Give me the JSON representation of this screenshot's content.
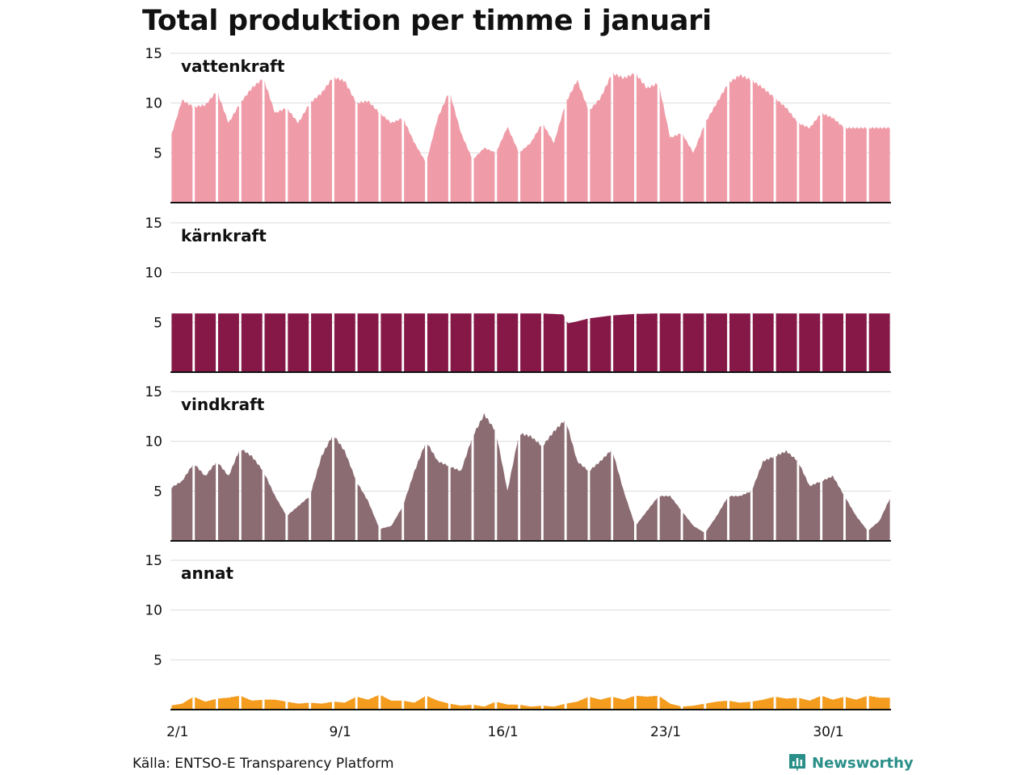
{
  "title": "Total produktion per timme i januari",
  "source": "Källa: ENTSO-E Transparency Platform",
  "brand": {
    "name": "Newsworthy",
    "icon": "bar-chart-icon",
    "color": "#2a8f88"
  },
  "chart_data": {
    "type": "area",
    "title": "Total produktion per timme i januari",
    "ylim": [
      0,
      15
    ],
    "yticks": [
      5,
      10,
      15
    ],
    "xlabel": "",
    "ylabel": "",
    "x_unit": "day of January (hourly resolution, days separated by white gaps)",
    "xlim": [
      1,
      32
    ],
    "xticks": [
      {
        "label": "2/1",
        "day": 2
      },
      {
        "label": "9/1",
        "day": 9
      },
      {
        "label": "16/1",
        "day": 16
      },
      {
        "label": "23/1",
        "day": 23
      },
      {
        "label": "30/1",
        "day": 30
      }
    ],
    "grid": true,
    "series": [
      {
        "name": "vattenkraft",
        "color": "#f09ba8",
        "x": [
          1,
          1.5,
          2,
          2.5,
          3,
          3.5,
          4,
          4.5,
          5,
          5.5,
          6,
          6.5,
          7,
          7.5,
          8,
          8.5,
          9,
          9.5,
          10,
          10.5,
          11,
          11.5,
          12,
          12.5,
          13,
          13.5,
          14,
          14.5,
          15,
          15.5,
          16,
          16.5,
          17,
          17.5,
          18,
          18.5,
          19,
          19.5,
          20,
          20.5,
          21,
          21.5,
          22,
          22.5,
          23,
          23.5,
          24,
          24.5,
          25,
          25.5,
          26,
          26.5,
          27,
          27.5,
          28,
          28.5,
          29,
          29.5,
          30,
          30.5,
          31,
          31.5,
          32
        ],
        "values": [
          6.5,
          10.3,
          9.6,
          9.8,
          11.2,
          8.0,
          10.0,
          11.5,
          12.5,
          9.0,
          9.5,
          8.0,
          10.0,
          11.0,
          12.6,
          12.2,
          10.0,
          10.2,
          9.0,
          8.0,
          8.5,
          6.0,
          4.0,
          8.5,
          11.2,
          7.0,
          4.3,
          5.5,
          5.0,
          7.6,
          5.0,
          6.0,
          8.0,
          6.0,
          10.0,
          12.3,
          9.2,
          10.5,
          13.0,
          12.5,
          13.0,
          11.5,
          12.0,
          6.5,
          7.0,
          5.0,
          8.0,
          10.0,
          12.0,
          12.8,
          12.3,
          11.5,
          10.5,
          9.5,
          8.0,
          7.5,
          9.0,
          8.5,
          7.5,
          7.5,
          7.5,
          7.5,
          7.5
        ]
      },
      {
        "name": "kärnkraft",
        "color": "#861848",
        "x": [
          1,
          2,
          3,
          4,
          5,
          6,
          7,
          8,
          9,
          10,
          11,
          12,
          13,
          14,
          15,
          16,
          17,
          17.9,
          18.1,
          18.5,
          19,
          20,
          21,
          22,
          23,
          24,
          25,
          26,
          27,
          28,
          29,
          30,
          31,
          32
        ],
        "values": [
          5.9,
          5.9,
          5.9,
          5.9,
          5.9,
          5.9,
          5.9,
          5.9,
          5.9,
          5.9,
          5.9,
          5.9,
          5.9,
          5.9,
          5.9,
          5.9,
          5.9,
          5.8,
          4.9,
          5.1,
          5.4,
          5.7,
          5.85,
          5.9,
          5.9,
          5.9,
          5.9,
          5.9,
          5.9,
          5.9,
          5.9,
          5.9,
          5.9,
          5.9
        ]
      },
      {
        "name": "vindkraft",
        "color": "#8c6c73",
        "x": [
          1,
          1.5,
          2,
          2.5,
          3,
          3.5,
          4,
          4.5,
          5,
          5.5,
          6,
          6.5,
          7,
          7.5,
          8,
          8.5,
          9,
          9.5,
          10,
          10.5,
          11,
          11.5,
          12,
          12.5,
          13,
          13.5,
          14,
          14.5,
          15,
          15.5,
          16,
          16.5,
          17,
          17.5,
          18,
          18.5,
          19,
          19.5,
          20,
          20.5,
          21,
          21.5,
          22,
          22.5,
          23,
          23.5,
          24,
          24.5,
          25,
          25.5,
          26,
          26.5,
          27,
          27.5,
          28,
          28.5,
          29,
          29.5,
          30,
          30.5,
          31,
          31.5,
          32
        ],
        "values": [
          5.3,
          6.0,
          7.8,
          6.5,
          8.0,
          6.5,
          9.3,
          8.5,
          7.0,
          4.5,
          2.5,
          3.5,
          4.5,
          8.5,
          10.7,
          9.0,
          6.0,
          4.0,
          1.2,
          1.5,
          3.5,
          7.0,
          10.0,
          8.0,
          7.5,
          7.0,
          10.5,
          12.7,
          11.0,
          5.0,
          10.8,
          10.5,
          9.5,
          11.0,
          12.2,
          8.0,
          7.0,
          8.0,
          9.2,
          5.0,
          1.5,
          3.0,
          4.5,
          4.5,
          3.0,
          1.5,
          0.8,
          2.5,
          4.5,
          4.5,
          5.0,
          8.0,
          8.5,
          9.0,
          8.0,
          5.5,
          6.0,
          6.5,
          4.5,
          2.5,
          1.0,
          2.0,
          4.5
        ]
      },
      {
        "name": "annat",
        "color": "#f39c1e",
        "x": [
          1,
          1.5,
          2,
          2.5,
          3,
          3.5,
          4,
          4.5,
          5,
          5.5,
          6,
          6.5,
          7,
          7.5,
          8,
          8.5,
          9,
          9.5,
          10,
          10.5,
          11,
          11.5,
          12,
          12.5,
          13,
          13.5,
          14,
          14.5,
          15,
          15.5,
          16,
          16.5,
          17,
          17.5,
          18,
          18.5,
          19,
          19.5,
          20,
          20.5,
          21,
          21.5,
          22,
          22.5,
          23,
          23.5,
          24,
          24.5,
          25,
          25.5,
          26,
          26.5,
          27,
          27.5,
          28,
          28.5,
          29,
          29.5,
          30,
          30.5,
          31,
          31.5,
          32
        ],
        "values": [
          0.4,
          0.6,
          1.3,
          0.8,
          1.1,
          1.2,
          1.4,
          0.9,
          1.0,
          1.0,
          0.8,
          0.6,
          0.7,
          0.6,
          0.8,
          0.7,
          1.3,
          1.0,
          1.5,
          0.9,
          0.9,
          0.7,
          1.4,
          0.9,
          0.6,
          0.4,
          0.5,
          0.3,
          0.8,
          0.5,
          0.5,
          0.3,
          0.4,
          0.3,
          0.6,
          0.8,
          1.3,
          1.0,
          1.3,
          1.0,
          1.4,
          1.3,
          1.4,
          0.6,
          0.3,
          0.4,
          0.6,
          0.8,
          0.9,
          0.7,
          0.8,
          1.0,
          1.3,
          1.1,
          1.2,
          0.9,
          1.4,
          1.0,
          1.3,
          1.0,
          1.4,
          1.2,
          1.2
        ]
      }
    ]
  }
}
